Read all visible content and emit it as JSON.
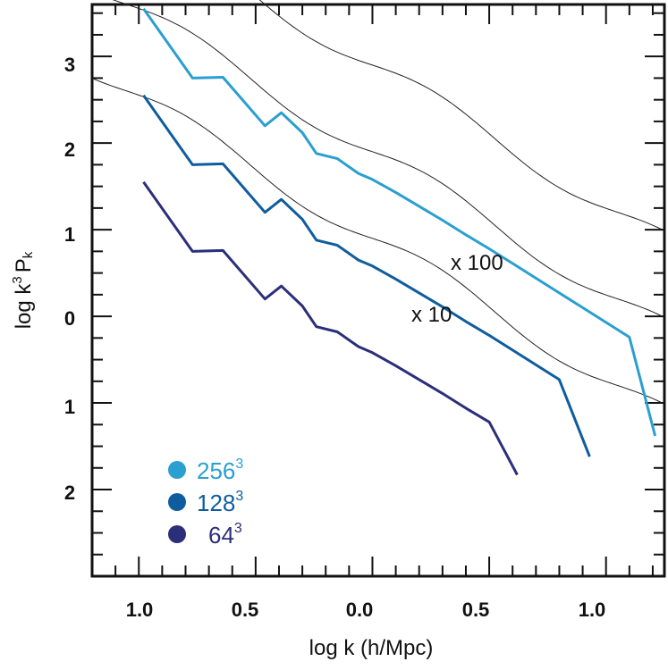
{
  "chart_data": {
    "type": "line",
    "title": "",
    "xlabel": "log k (h/Mpc)",
    "ylabel_main": "log k",
    "ylabel_sup": "3",
    "ylabel_tail": "P",
    "ylabel_sub": "k",
    "x_tick_labels": [
      "1.0",
      "0.5",
      "0.0",
      "0.5",
      "1.0"
    ],
    "y_tick_labels": [
      "3",
      "2",
      "1",
      "0",
      "1",
      "2"
    ],
    "x_tick_values": [
      -1.0,
      -0.5,
      0.0,
      0.5,
      1.0
    ],
    "y_tick_values": [
      3,
      2,
      1,
      0,
      -1,
      -2
    ],
    "xlim": [
      -1.2,
      1.25
    ],
    "ylim": [
      -3.0,
      3.6
    ],
    "grid": false,
    "legend_position": "bottom-left",
    "annotations": [
      {
        "text": "x 100",
        "x": 0.42,
        "y": 0.6
      },
      {
        "text": "x 10",
        "x": 0.26,
        "y": 0.0
      }
    ],
    "series": [
      {
        "name": "256",
        "exponent": "3",
        "color": "#2a9fd0",
        "points": [
          [
            -0.98,
            3.55
          ],
          [
            -0.77,
            2.75
          ],
          [
            -0.64,
            2.76
          ],
          [
            -0.46,
            2.2
          ],
          [
            -0.39,
            2.35
          ],
          [
            -0.3,
            2.12
          ],
          [
            -0.24,
            1.88
          ],
          [
            -0.15,
            1.82
          ],
          [
            -0.06,
            1.65
          ],
          [
            0.0,
            1.58
          ],
          [
            0.1,
            1.43
          ],
          [
            0.2,
            1.27
          ],
          [
            0.3,
            1.11
          ],
          [
            0.4,
            0.94
          ],
          [
            0.5,
            0.78
          ],
          [
            0.6,
            0.61
          ],
          [
            0.7,
            0.44
          ],
          [
            0.8,
            0.27
          ],
          [
            0.9,
            0.1
          ],
          [
            1.0,
            -0.07
          ],
          [
            1.1,
            -0.24
          ],
          [
            1.21,
            -1.38
          ]
        ]
      },
      {
        "name": "128",
        "exponent": "3",
        "color": "#0f5d9e",
        "points": [
          [
            -0.98,
            2.55
          ],
          [
            -0.77,
            1.75
          ],
          [
            -0.64,
            1.76
          ],
          [
            -0.46,
            1.2
          ],
          [
            -0.39,
            1.35
          ],
          [
            -0.3,
            1.12
          ],
          [
            -0.24,
            0.88
          ],
          [
            -0.15,
            0.82
          ],
          [
            -0.06,
            0.65
          ],
          [
            0.0,
            0.58
          ],
          [
            0.1,
            0.43
          ],
          [
            0.2,
            0.27
          ],
          [
            0.3,
            0.11
          ],
          [
            0.4,
            -0.06
          ],
          [
            0.5,
            -0.22
          ],
          [
            0.6,
            -0.39
          ],
          [
            0.7,
            -0.56
          ],
          [
            0.8,
            -0.73
          ],
          [
            0.93,
            -1.62
          ]
        ]
      },
      {
        "name": "64",
        "exponent": "3",
        "color": "#2b2f7a",
        "points": [
          [
            -0.98,
            1.55
          ],
          [
            -0.77,
            0.75
          ],
          [
            -0.64,
            0.76
          ],
          [
            -0.46,
            0.2
          ],
          [
            -0.39,
            0.35
          ],
          [
            -0.3,
            0.12
          ],
          [
            -0.24,
            -0.12
          ],
          [
            -0.15,
            -0.18
          ],
          [
            -0.06,
            -0.35
          ],
          [
            0.0,
            -0.42
          ],
          [
            0.1,
            -0.57
          ],
          [
            0.2,
            -0.73
          ],
          [
            0.3,
            -0.89
          ],
          [
            0.4,
            -1.06
          ],
          [
            0.5,
            -1.22
          ],
          [
            0.62,
            -1.83
          ]
        ]
      }
    ],
    "reference_curves": [
      {
        "color": "#222222",
        "offset": 2
      },
      {
        "color": "#222222",
        "offset": 1
      },
      {
        "color": "#222222",
        "offset": 0
      }
    ]
  }
}
